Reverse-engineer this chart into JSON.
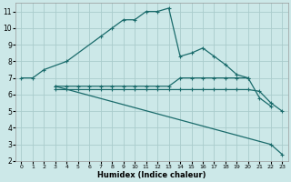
{
  "xlabel": "Humidex (Indice chaleur)",
  "xlim": [
    -0.5,
    23.5
  ],
  "ylim": [
    2,
    11.5
  ],
  "yticks": [
    2,
    3,
    4,
    5,
    6,
    7,
    8,
    9,
    10,
    11
  ],
  "xticks": [
    0,
    1,
    2,
    3,
    4,
    5,
    6,
    7,
    8,
    9,
    10,
    11,
    12,
    13,
    14,
    15,
    16,
    17,
    18,
    19,
    20,
    21,
    22,
    23
  ],
  "background_color": "#cce8e8",
  "grid_color": "#aacccc",
  "line_color": "#1a6b6b",
  "lines": [
    {
      "x": [
        0,
        1,
        2,
        4,
        7,
        8,
        9,
        10,
        11,
        12,
        13,
        14,
        15,
        16,
        17,
        18,
        19,
        20
      ],
      "y": [
        7,
        7,
        7.5,
        8,
        9.5,
        10,
        10.5,
        10.5,
        11,
        11,
        11.2,
        8.3,
        8.5,
        8.8,
        8.3,
        7.8,
        7.2,
        7.0
      ]
    },
    {
      "x": [
        3,
        4,
        5,
        6,
        7,
        8,
        9,
        10,
        11,
        12,
        13,
        14,
        15,
        16,
        17,
        18,
        19,
        20,
        21,
        22
      ],
      "y": [
        6.5,
        6.5,
        6.5,
        6.5,
        6.5,
        6.5,
        6.5,
        6.5,
        6.5,
        6.5,
        6.5,
        7,
        7,
        7,
        7,
        7,
        7,
        7,
        5.8,
        5.3
      ]
    },
    {
      "x": [
        3,
        4,
        5,
        6,
        7,
        8,
        9,
        10,
        11,
        12,
        13,
        14,
        15,
        16,
        17,
        18,
        19,
        20,
        21,
        22,
        23
      ],
      "y": [
        6.3,
        6.3,
        6.3,
        6.3,
        6.3,
        6.3,
        6.3,
        6.3,
        6.3,
        6.3,
        6.3,
        6.3,
        6.3,
        6.3,
        6.3,
        6.3,
        6.3,
        6.3,
        6.2,
        5.5,
        5.0
      ]
    },
    {
      "x": [
        3,
        22,
        23
      ],
      "y": [
        6.5,
        3.0,
        2.4
      ]
    }
  ]
}
